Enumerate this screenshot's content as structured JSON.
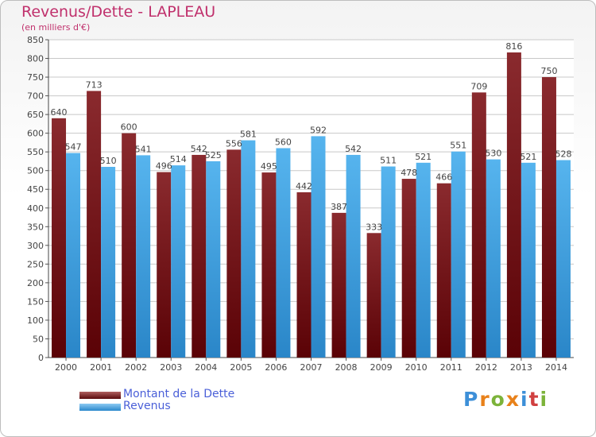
{
  "title": "Revenus/Dette - LAPLEAU",
  "subtitle": "(en milliers d'€)",
  "brand": {
    "letters": [
      "P",
      "r",
      "o",
      "x",
      "i",
      "t",
      "i"
    ],
    "colors": [
      "#3d8fd8",
      "#e8811a",
      "#7cb33a",
      "#e8811a",
      "#3d8fd8",
      "#d04040",
      "#7cb33a"
    ]
  },
  "colors": {
    "dette": "#7a1418",
    "revenus": "#3a9ee0",
    "title": "#c0306c",
    "legend_text": "#4a5fd8"
  },
  "legend": [
    {
      "label": "Montant de la Dette",
      "color": "#6b0f12"
    },
    {
      "label": "Revenus",
      "color": "#3a9ee0"
    }
  ],
  "chart_data": {
    "type": "bar",
    "title": "Revenus/Dette - LAPLEAU",
    "subtitle": "(en milliers d'€)",
    "categories": [
      "2000",
      "2001",
      "2002",
      "2003",
      "2004",
      "2005",
      "2006",
      "2007",
      "2008",
      "2009",
      "2010",
      "2011",
      "2012",
      "2013",
      "2014"
    ],
    "series": [
      {
        "name": "Montant de la Dette",
        "values": [
          640,
          713,
          600,
          496,
          542,
          556,
          495,
          442,
          387,
          333,
          478,
          466,
          709,
          816,
          750
        ]
      },
      {
        "name": "Revenus",
        "values": [
          547,
          510,
          541,
          514,
          525,
          581,
          560,
          592,
          542,
          511,
          521,
          551,
          530,
          521,
          528
        ]
      }
    ],
    "yticks": [
      0,
      50,
      100,
      150,
      200,
      250,
      300,
      350,
      400,
      450,
      500,
      550,
      600,
      650,
      700,
      750,
      800,
      850
    ],
    "ylim": [
      0,
      850
    ],
    "grid": true,
    "legend_position": "bottom-left"
  }
}
